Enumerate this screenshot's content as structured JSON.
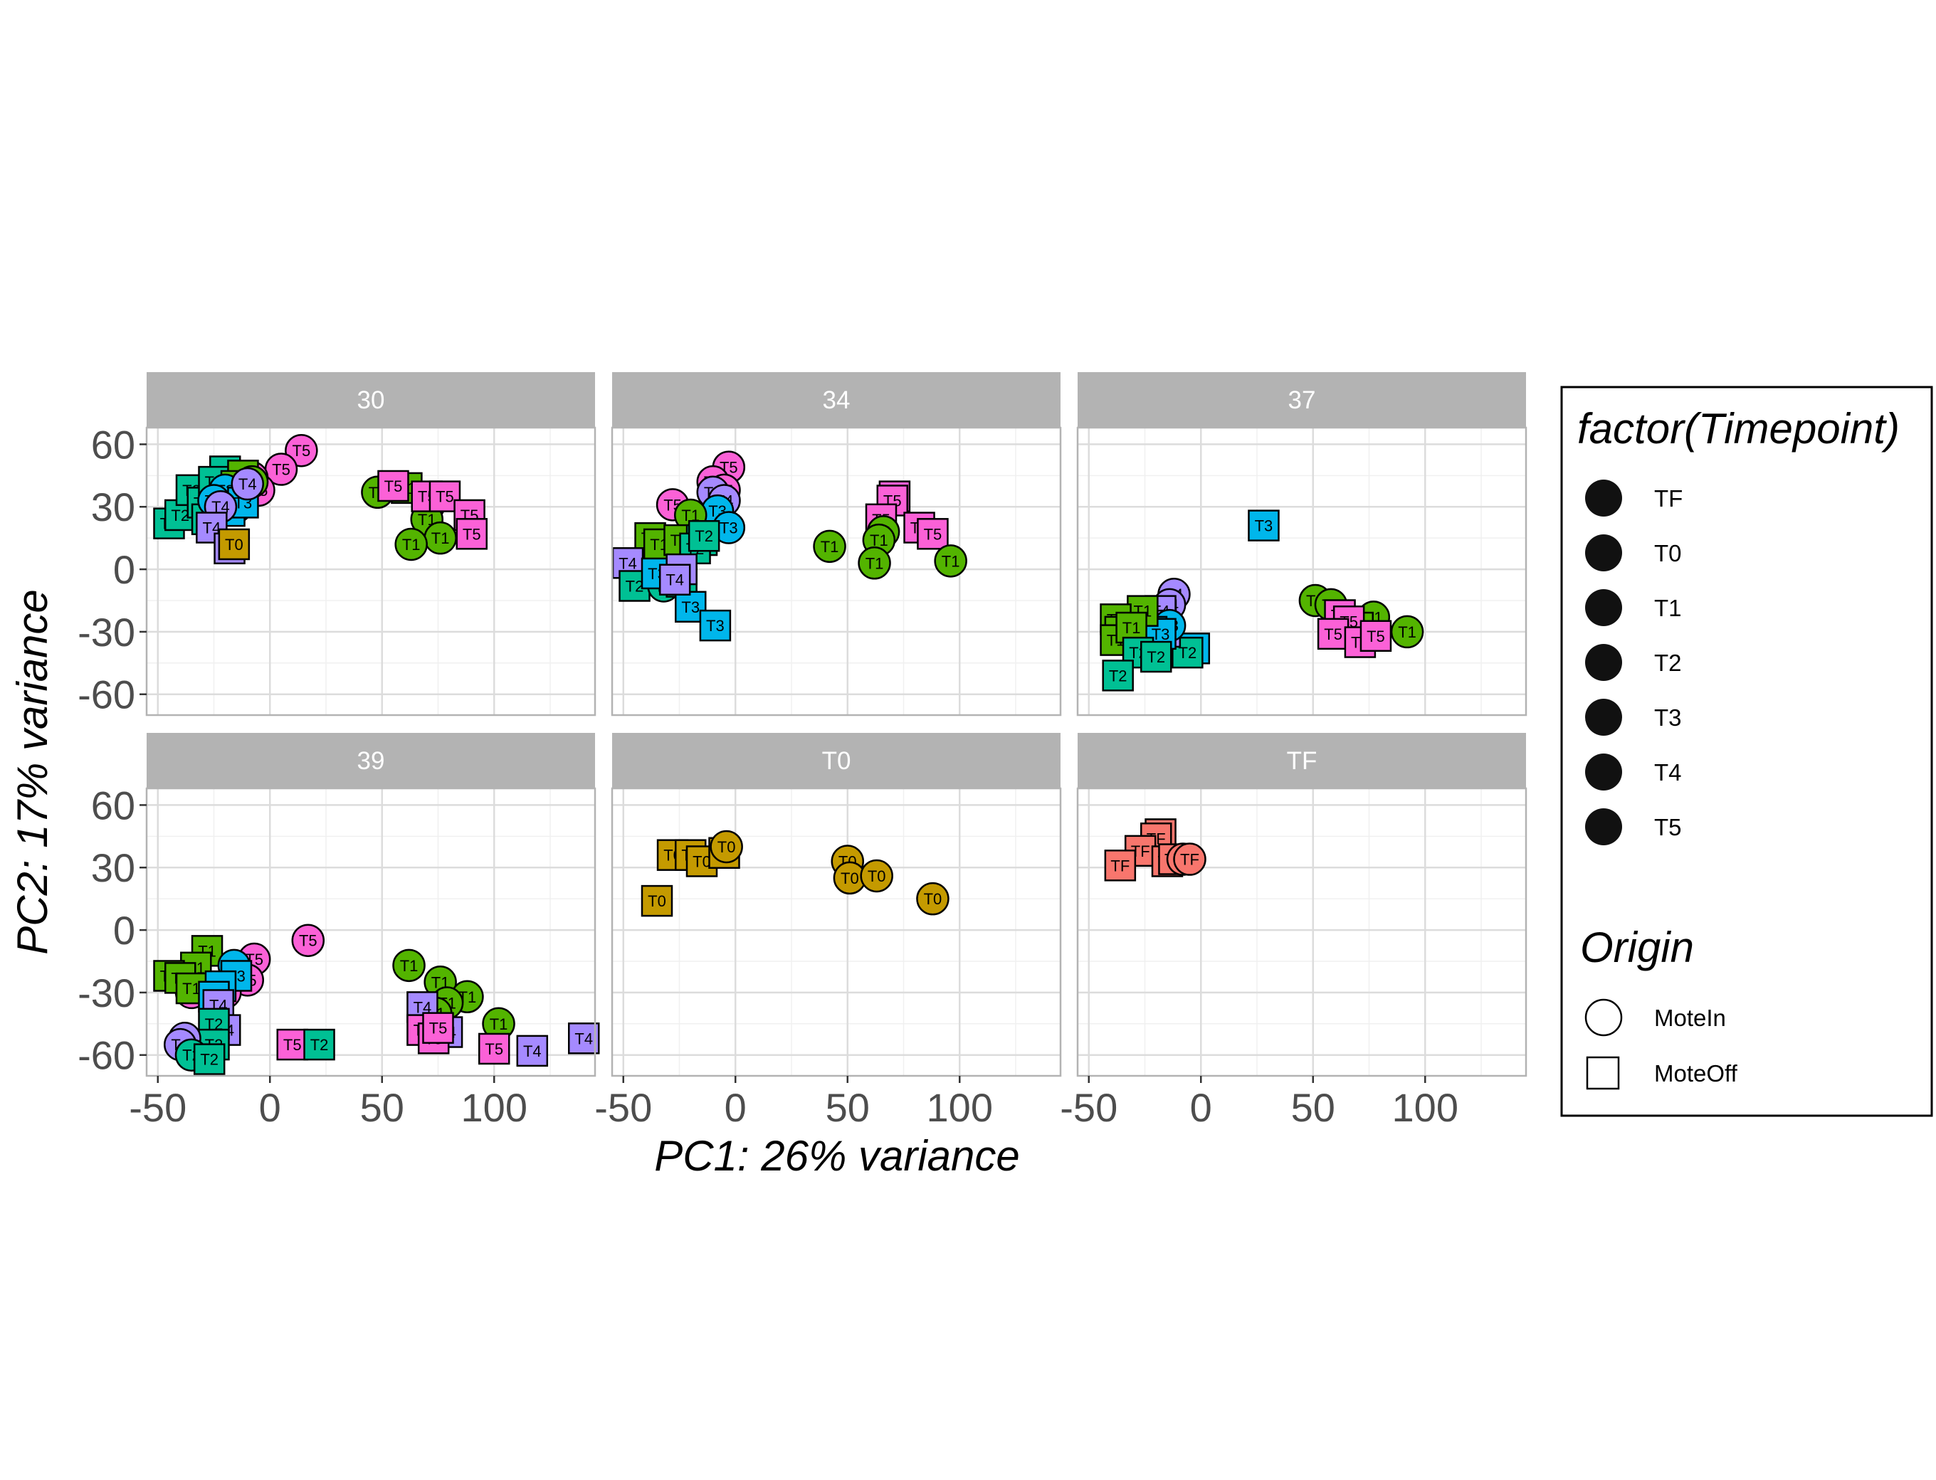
{
  "chart_data": {
    "type": "scatter",
    "xlabel": "PC1: 26% variance",
    "ylabel": "PC2: 17% variance",
    "xlim": [
      -55,
      145
    ],
    "ylim": [
      -70,
      68
    ],
    "xticks": [
      -50,
      0,
      50,
      100
    ],
    "yticks": [
      -60,
      -30,
      0,
      30,
      60
    ],
    "grid": true,
    "legend_placement": "right",
    "colors": {
      "TF": "#F8766D",
      "T0": "#C49A00",
      "T1": "#53B400",
      "T2": "#00C094",
      "T3": "#00B6EB",
      "T4": "#A58AFF",
      "T5": "#FB61D7"
    },
    "legends": [
      {
        "title": "factor(Timepoint)",
        "items": [
          "TF",
          "T0",
          "T1",
          "T2",
          "T3",
          "T4",
          "T5"
        ]
      },
      {
        "title": "Origin",
        "items": [
          "MoteIn",
          "MoteOff"
        ]
      }
    ],
    "facets": [
      {
        "label": "30",
        "points": [
          {
            "x": 61,
            "y": 39,
            "t": "T1",
            "o": "MoteOff"
          },
          {
            "x": 48,
            "y": 37,
            "t": "T1",
            "o": "MoteIn"
          },
          {
            "x": 71,
            "y": 31,
            "t": "T1",
            "o": "MoteIn"
          },
          {
            "x": 70,
            "y": 24,
            "t": "T1",
            "o": "MoteIn"
          },
          {
            "x": 76,
            "y": 15,
            "t": "T1",
            "o": "MoteIn"
          },
          {
            "x": 63,
            "y": 12,
            "t": "T1",
            "o": "MoteIn"
          },
          {
            "x": 55,
            "y": 40,
            "t": "T5",
            "o": "MoteOff"
          },
          {
            "x": 70,
            "y": 35,
            "t": "T5",
            "o": "MoteOff"
          },
          {
            "x": 78,
            "y": 35,
            "t": "T5",
            "o": "MoteOff"
          },
          {
            "x": 89,
            "y": 26,
            "t": "T5",
            "o": "MoteOff"
          },
          {
            "x": 90,
            "y": 17,
            "t": "T5",
            "o": "MoteOff"
          },
          {
            "x": 14,
            "y": 57,
            "t": "T5",
            "o": "MoteIn"
          },
          {
            "x": 5,
            "y": 48,
            "t": "T5",
            "o": "MoteIn"
          },
          {
            "x": -5,
            "y": 38,
            "t": "T5",
            "o": "MoteIn"
          },
          {
            "x": -8,
            "y": 44,
            "t": "T5",
            "o": "MoteIn"
          },
          {
            "x": -18,
            "y": 35,
            "t": "T5",
            "o": "MoteIn"
          },
          {
            "x": -15,
            "y": 30,
            "t": "T5",
            "o": "MoteIn"
          },
          {
            "x": -45,
            "y": 22,
            "t": "T2",
            "o": "MoteOff"
          },
          {
            "x": -40,
            "y": 26,
            "t": "T2",
            "o": "MoteOff"
          },
          {
            "x": -35,
            "y": 38,
            "t": "T2",
            "o": "MoteOff"
          },
          {
            "x": -20,
            "y": 47,
            "t": "T2",
            "o": "MoteOff"
          },
          {
            "x": -30,
            "y": 32,
            "t": "T2",
            "o": "MoteOff"
          },
          {
            "x": -25,
            "y": 42,
            "t": "T2",
            "o": "MoteOff"
          },
          {
            "x": -28,
            "y": 24,
            "t": "T2",
            "o": "MoteOff"
          },
          {
            "x": -12,
            "y": 45,
            "t": "T1",
            "o": "MoteOff"
          },
          {
            "x": -15,
            "y": 40,
            "t": "T1",
            "o": "MoteOff"
          },
          {
            "x": -8,
            "y": 42,
            "t": "T1",
            "o": "MoteIn"
          },
          {
            "x": -20,
            "y": 38,
            "t": "T3",
            "o": "MoteIn"
          },
          {
            "x": -25,
            "y": 33,
            "t": "T3",
            "o": "MoteIn"
          },
          {
            "x": -18,
            "y": 28,
            "t": "T3",
            "o": "MoteOff"
          },
          {
            "x": -12,
            "y": 32,
            "t": "T3",
            "o": "MoteOff"
          },
          {
            "x": -10,
            "y": 41,
            "t": "T4",
            "o": "MoteIn"
          },
          {
            "x": -22,
            "y": 30,
            "t": "T4",
            "o": "MoteIn"
          },
          {
            "x": -26,
            "y": 20,
            "t": "T4",
            "o": "MoteOff"
          },
          {
            "x": -18,
            "y": 10,
            "t": "T4",
            "o": "MoteOff"
          },
          {
            "x": -16,
            "y": 12,
            "t": "T0",
            "o": "MoteOff"
          }
        ]
      },
      {
        "label": "34",
        "points": [
          {
            "x": 71,
            "y": 35,
            "t": "T5",
            "o": "MoteOff"
          },
          {
            "x": 70,
            "y": 33,
            "t": "T5",
            "o": "MoteOff"
          },
          {
            "x": 65,
            "y": 24,
            "t": "T5",
            "o": "MoteOff"
          },
          {
            "x": 82,
            "y": 20,
            "t": "T5",
            "o": "MoteOff"
          },
          {
            "x": 88,
            "y": 17,
            "t": "T5",
            "o": "MoteOff"
          },
          {
            "x": -28,
            "y": 31,
            "t": "T5",
            "o": "MoteIn"
          },
          {
            "x": -3,
            "y": 49,
            "t": "T5",
            "o": "MoteIn"
          },
          {
            "x": -10,
            "y": 42,
            "t": "T5",
            "o": "MoteIn"
          },
          {
            "x": -5,
            "y": 38,
            "t": "T5",
            "o": "MoteIn"
          },
          {
            "x": 66,
            "y": 18,
            "t": "T1",
            "o": "MoteIn"
          },
          {
            "x": 64,
            "y": 14,
            "t": "T1",
            "o": "MoteIn"
          },
          {
            "x": 42,
            "y": 11,
            "t": "T1",
            "o": "MoteIn"
          },
          {
            "x": 62,
            "y": 3,
            "t": "T1",
            "o": "MoteIn"
          },
          {
            "x": 96,
            "y": 4,
            "t": "T1",
            "o": "MoteIn"
          },
          {
            "x": -10,
            "y": 37,
            "t": "T4",
            "o": "MoteIn"
          },
          {
            "x": -5,
            "y": 33,
            "t": "T4",
            "o": "MoteIn"
          },
          {
            "x": -8,
            "y": 28,
            "t": "T3",
            "o": "MoteIn"
          },
          {
            "x": -3,
            "y": 20,
            "t": "T3",
            "o": "MoteIn"
          },
          {
            "x": -20,
            "y": 26,
            "t": "T1",
            "o": "MoteIn"
          },
          {
            "x": -38,
            "y": 15,
            "t": "T1",
            "o": "MoteOff"
          },
          {
            "x": -34,
            "y": 12,
            "t": "T1",
            "o": "MoteOff"
          },
          {
            "x": -25,
            "y": 14,
            "t": "T1",
            "o": "MoteOff"
          },
          {
            "x": -15,
            "y": 14,
            "t": "T2",
            "o": "MoteOff"
          },
          {
            "x": -18,
            "y": 10,
            "t": "T2",
            "o": "MoteOff"
          },
          {
            "x": -14,
            "y": 16,
            "t": "T2",
            "o": "MoteOff"
          },
          {
            "x": -48,
            "y": 3,
            "t": "T4",
            "o": "MoteOff"
          },
          {
            "x": -45,
            "y": -8,
            "t": "T2",
            "o": "MoteOff"
          },
          {
            "x": -32,
            "y": -8,
            "t": "T2",
            "o": "MoteIn"
          },
          {
            "x": -24,
            "y": -6,
            "t": "T2",
            "o": "MoteOff"
          },
          {
            "x": -35,
            "y": -2,
            "t": "T3",
            "o": "MoteOff"
          },
          {
            "x": -20,
            "y": -18,
            "t": "T3",
            "o": "MoteOff"
          },
          {
            "x": -9,
            "y": -27,
            "t": "T3",
            "o": "MoteOff"
          },
          {
            "x": -24,
            "y": 0,
            "t": "T4",
            "o": "MoteOff"
          },
          {
            "x": -27,
            "y": -5,
            "t": "T4",
            "o": "MoteOff"
          }
        ]
      },
      {
        "label": "37",
        "points": [
          {
            "x": 28,
            "y": 21,
            "t": "T3",
            "o": "MoteOff"
          },
          {
            "x": -3,
            "y": -38,
            "t": "T3",
            "o": "MoteOff"
          },
          {
            "x": -6,
            "y": -40,
            "t": "T2",
            "o": "MoteOff"
          },
          {
            "x": 51,
            "y": -15,
            "t": "T1",
            "o": "MoteIn"
          },
          {
            "x": 58,
            "y": -17,
            "t": "T1",
            "o": "MoteIn"
          },
          {
            "x": 63,
            "y": -24,
            "t": "T1",
            "o": "MoteIn"
          },
          {
            "x": 77,
            "y": -23,
            "t": "T1",
            "o": "MoteIn"
          },
          {
            "x": 92,
            "y": -30,
            "t": "T1",
            "o": "MoteIn"
          },
          {
            "x": 70,
            "y": -28,
            "t": "T1",
            "o": "MoteOff"
          },
          {
            "x": 62,
            "y": -22,
            "t": "T5",
            "o": "MoteOff"
          },
          {
            "x": 66,
            "y": -25,
            "t": "T5",
            "o": "MoteOff"
          },
          {
            "x": 59,
            "y": -31,
            "t": "T5",
            "o": "MoteOff"
          },
          {
            "x": 71,
            "y": -35,
            "t": "T5",
            "o": "MoteOff"
          },
          {
            "x": 78,
            "y": -32,
            "t": "T5",
            "o": "MoteOff"
          },
          {
            "x": -12,
            "y": -12,
            "t": "T4",
            "o": "MoteIn"
          },
          {
            "x": -14,
            "y": -17,
            "t": "T4",
            "o": "MoteIn"
          },
          {
            "x": -18,
            "y": -20,
            "t": "T4",
            "o": "MoteOff"
          },
          {
            "x": -28,
            "y": -25,
            "t": "T4",
            "o": "MoteOff"
          },
          {
            "x": -20,
            "y": -27,
            "t": "T4",
            "o": "MoteOff"
          },
          {
            "x": -24,
            "y": -34,
            "t": "T4",
            "o": "MoteOff"
          },
          {
            "x": -16,
            "y": -30,
            "t": "T4",
            "o": "MoteOff"
          },
          {
            "x": -14,
            "y": -27,
            "t": "T3",
            "o": "MoteIn"
          },
          {
            "x": -22,
            "y": -30,
            "t": "T3",
            "o": "MoteOff"
          },
          {
            "x": -18,
            "y": -31,
            "t": "T3",
            "o": "MoteOff"
          },
          {
            "x": -26,
            "y": -20,
            "t": "T1",
            "o": "MoteOff"
          },
          {
            "x": -38,
            "y": -24,
            "t": "T1",
            "o": "MoteOff"
          },
          {
            "x": -36,
            "y": -30,
            "t": "T1",
            "o": "MoteOff"
          },
          {
            "x": -38,
            "y": -34,
            "t": "T1",
            "o": "MoteOff"
          },
          {
            "x": -31,
            "y": -28,
            "t": "T1",
            "o": "MoteOff"
          },
          {
            "x": -28,
            "y": -40,
            "t": "T2",
            "o": "MoteOff"
          },
          {
            "x": -20,
            "y": -42,
            "t": "T2",
            "o": "MoteOff"
          },
          {
            "x": -37,
            "y": -51,
            "t": "T2",
            "o": "MoteOff"
          }
        ]
      },
      {
        "label": "39",
        "points": [
          {
            "x": 17,
            "y": -5,
            "t": "T5",
            "o": "MoteIn"
          },
          {
            "x": 62,
            "y": -17,
            "t": "T1",
            "o": "MoteIn"
          },
          {
            "x": 76,
            "y": -25,
            "t": "T1",
            "o": "MoteIn"
          },
          {
            "x": 88,
            "y": -32,
            "t": "T1",
            "o": "MoteIn"
          },
          {
            "x": 79,
            "y": -35,
            "t": "T1",
            "o": "MoteIn"
          },
          {
            "x": 102,
            "y": -45,
            "t": "T1",
            "o": "MoteIn"
          },
          {
            "x": 74,
            "y": -40,
            "t": "T1",
            "o": "MoteIn"
          },
          {
            "x": 68,
            "y": -37,
            "t": "T4",
            "o": "MoteOff"
          },
          {
            "x": 79,
            "y": -49,
            "t": "T4",
            "o": "MoteOff"
          },
          {
            "x": 117,
            "y": -58,
            "t": "T4",
            "o": "MoteOff"
          },
          {
            "x": 140,
            "y": -52,
            "t": "T4",
            "o": "MoteOff"
          },
          {
            "x": 68,
            "y": -48,
            "t": "T5",
            "o": "MoteOff"
          },
          {
            "x": 73,
            "y": -52,
            "t": "T5",
            "o": "MoteOff"
          },
          {
            "x": 75,
            "y": -47,
            "t": "T5",
            "o": "MoteOff"
          },
          {
            "x": 100,
            "y": -57,
            "t": "T5",
            "o": "MoteOff"
          },
          {
            "x": 10,
            "y": -55,
            "t": "T5",
            "o": "MoteOff"
          },
          {
            "x": 22,
            "y": -55,
            "t": "T2",
            "o": "MoteOff"
          },
          {
            "x": -7,
            "y": -14,
            "t": "T5",
            "o": "MoteIn"
          },
          {
            "x": -10,
            "y": -24,
            "t": "T5",
            "o": "MoteIn"
          },
          {
            "x": -20,
            "y": -30,
            "t": "T5",
            "o": "MoteIn"
          },
          {
            "x": -35,
            "y": -30,
            "t": "T5",
            "o": "MoteIn"
          },
          {
            "x": -28,
            "y": -10,
            "t": "T1",
            "o": "MoteOff"
          },
          {
            "x": -33,
            "y": -18,
            "t": "T1",
            "o": "MoteOff"
          },
          {
            "x": -45,
            "y": -22,
            "t": "T1",
            "o": "MoteOff"
          },
          {
            "x": -40,
            "y": -23,
            "t": "T1",
            "o": "MoteOff"
          },
          {
            "x": -35,
            "y": -28,
            "t": "T1",
            "o": "MoteOff"
          },
          {
            "x": -16,
            "y": -17,
            "t": "T3",
            "o": "MoteIn"
          },
          {
            "x": -15,
            "y": -22,
            "t": "T3",
            "o": "MoteOff"
          },
          {
            "x": -22,
            "y": -27,
            "t": "T3",
            "o": "MoteOff"
          },
          {
            "x": -25,
            "y": -32,
            "t": "T3",
            "o": "MoteOff"
          },
          {
            "x": -23,
            "y": -36,
            "t": "T4",
            "o": "MoteOff"
          },
          {
            "x": -20,
            "y": -48,
            "t": "T4",
            "o": "MoteOff"
          },
          {
            "x": -25,
            "y": -45,
            "t": "T2",
            "o": "MoteOff"
          },
          {
            "x": -25,
            "y": -55,
            "t": "T2",
            "o": "MoteOff"
          },
          {
            "x": -38,
            "y": -52,
            "t": "T4",
            "o": "MoteIn"
          },
          {
            "x": -40,
            "y": -55,
            "t": "T4",
            "o": "MoteIn"
          },
          {
            "x": -35,
            "y": -60,
            "t": "T2",
            "o": "MoteIn"
          },
          {
            "x": -27,
            "y": -62,
            "t": "T2",
            "o": "MoteOff"
          }
        ]
      },
      {
        "label": "T0",
        "points": [
          {
            "x": -28,
            "y": 36,
            "t": "T0",
            "o": "MoteOff"
          },
          {
            "x": -20,
            "y": 36,
            "t": "T0",
            "o": "MoteOff"
          },
          {
            "x": -15,
            "y": 33,
            "t": "T0",
            "o": "MoteOff"
          },
          {
            "x": -5,
            "y": 37,
            "t": "T0",
            "o": "MoteOff"
          },
          {
            "x": -4,
            "y": 40,
            "t": "T0",
            "o": "MoteIn"
          },
          {
            "x": -35,
            "y": 14,
            "t": "T0",
            "o": "MoteOff"
          },
          {
            "x": 50,
            "y": 33,
            "t": "T0",
            "o": "MoteIn"
          },
          {
            "x": 51,
            "y": 25,
            "t": "T0",
            "o": "MoteIn"
          },
          {
            "x": 63,
            "y": 26,
            "t": "T0",
            "o": "MoteIn"
          },
          {
            "x": 88,
            "y": 15,
            "t": "T0",
            "o": "MoteIn"
          }
        ]
      },
      {
        "label": "TF",
        "points": [
          {
            "x": -18,
            "y": 46,
            "t": "TF",
            "o": "MoteOff"
          },
          {
            "x": -20,
            "y": 44,
            "t": "TF",
            "o": "MoteOff"
          },
          {
            "x": -27,
            "y": 38,
            "t": "TF",
            "o": "MoteOff"
          },
          {
            "x": -36,
            "y": 31,
            "t": "TF",
            "o": "MoteOff"
          },
          {
            "x": -15,
            "y": 33,
            "t": "TF",
            "o": "MoteOff"
          },
          {
            "x": -12,
            "y": 34,
            "t": "TF",
            "o": "MoteOff"
          },
          {
            "x": -8,
            "y": 34,
            "t": "TF",
            "o": "MoteIn"
          },
          {
            "x": -5,
            "y": 34,
            "t": "TF",
            "o": "MoteIn"
          }
        ]
      }
    ]
  }
}
